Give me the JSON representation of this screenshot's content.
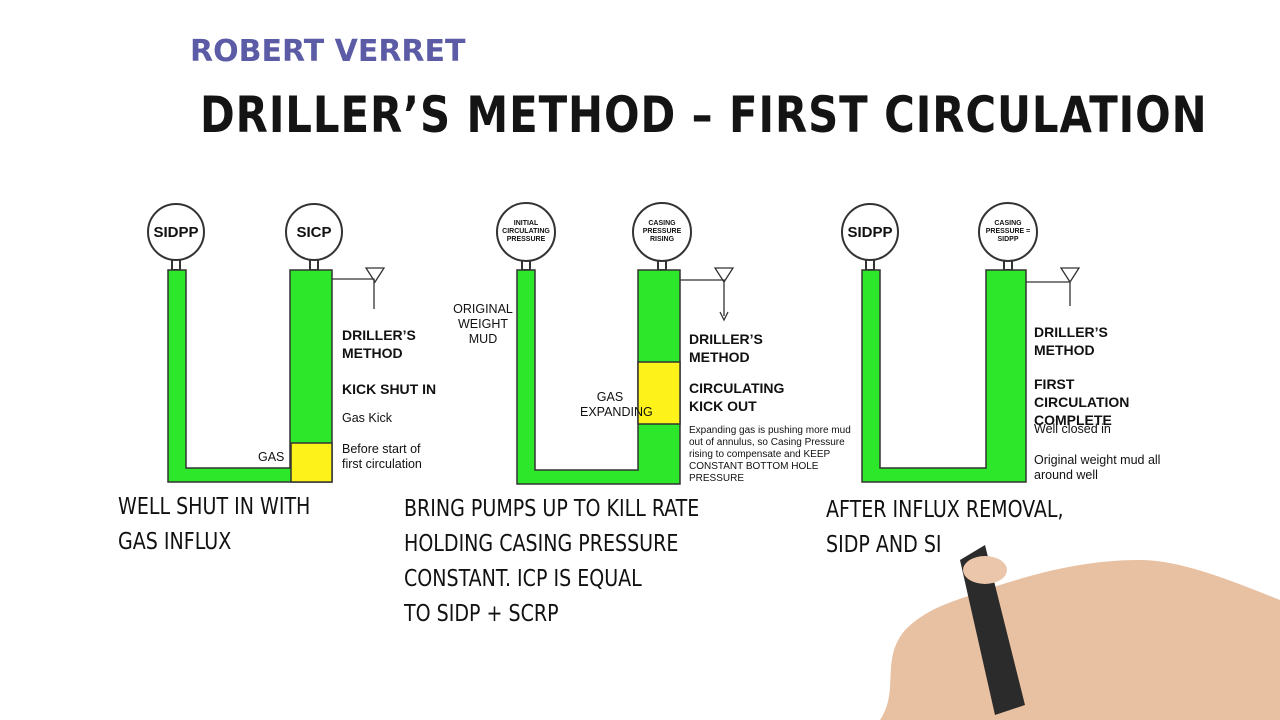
{
  "header": {
    "author": "ROBERT VERRET",
    "title": "DRILLER’S METHOD – FIRST CIRCULATION"
  },
  "panels": [
    {
      "gauges": [
        "SIDPP",
        "SICP"
      ],
      "gas_label": "GAS",
      "notes": [
        "DRILLER’S METHOD",
        "KICK SHUT IN",
        "Gas Kick",
        "Before start of first circulation"
      ],
      "caption": [
        "WELL SHUT IN WITH",
        "GAS INFLUX"
      ]
    },
    {
      "gauges": [
        "INITIAL CIRCULATING PRESSURE",
        "CASING PRESSURE RISING"
      ],
      "side_label": "ORIGINAL WEIGHT MUD",
      "gas_label": "GAS EXPANDING",
      "notes": [
        "DRILLER’S METHOD",
        "CIRCULATING KICK OUT",
        "Expanding gas is pushing more mud out of annulus, so Casing Pressure rising to compensate and KEEP CONSTANT BOTTOM HOLE PRESSURE"
      ],
      "caption": [
        "BRING PUMPS UP TO KILL RATE",
        "HOLDING CASING PRESSURE",
        "CONSTANT. ICP IS EQUAL",
        "TO SIDP + SCRP"
      ]
    },
    {
      "gauges": [
        "SIDPP",
        "CASING PRESSURE = SIDPP"
      ],
      "notes": [
        "DRILLER’S METHOD",
        "FIRST CIRCULATION COMPLETE",
        "Well closed in",
        "Original weight mud all around well"
      ],
      "caption": [
        "AFTER INFLUX REMOVAL,",
        "SIDP AND SI"
      ]
    }
  ]
}
